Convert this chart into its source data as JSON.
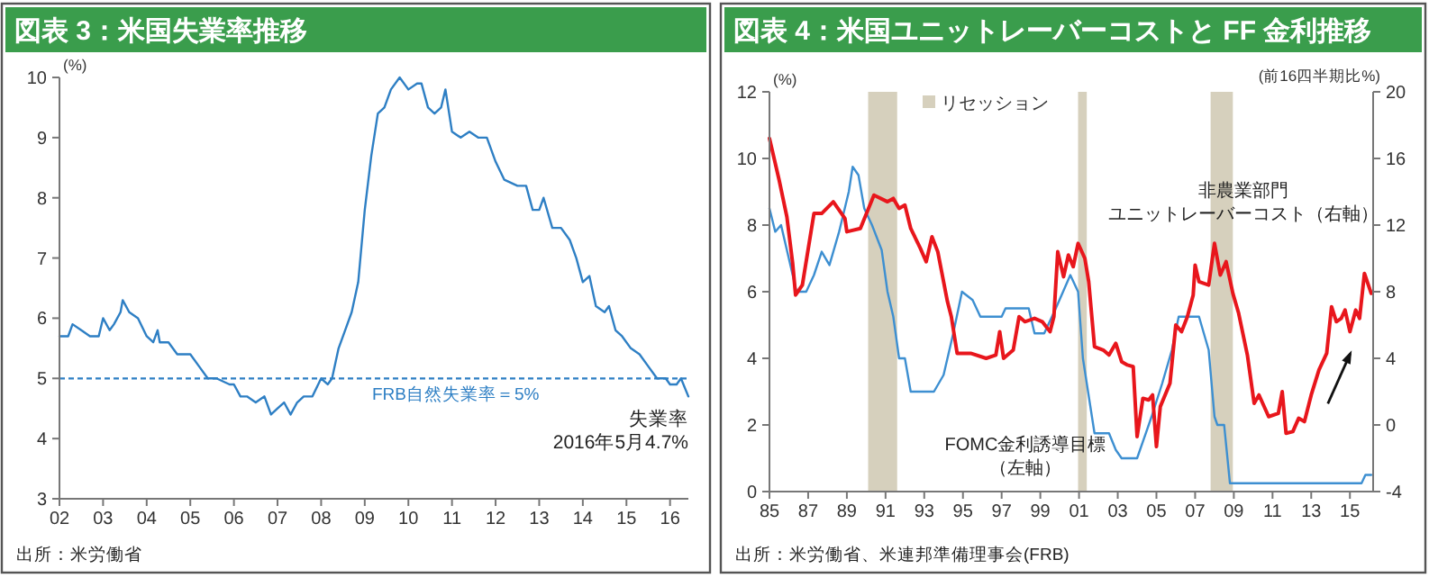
{
  "chart_data": [
    {
      "type": "line",
      "title": "図表 3：米国失業率推移",
      "ylabel": "(%)",
      "xlim": [
        2002,
        2016.42
      ],
      "xticks": [
        {
          "value": 2002,
          "label": "02"
        },
        {
          "value": 2003,
          "label": "03"
        },
        {
          "value": 2004,
          "label": "04"
        },
        {
          "value": 2005,
          "label": "05"
        },
        {
          "value": 2006,
          "label": "06"
        },
        {
          "value": 2007,
          "label": "07"
        },
        {
          "value": 2008,
          "label": "08"
        },
        {
          "value": 2009,
          "label": "09"
        },
        {
          "value": 2010,
          "label": "10"
        },
        {
          "value": 2011,
          "label": "11"
        },
        {
          "value": 2012,
          "label": "12"
        },
        {
          "value": 2013,
          "label": "13"
        },
        {
          "value": 2014,
          "label": "14"
        },
        {
          "value": 2015,
          "label": "15"
        },
        {
          "value": 2016,
          "label": "16"
        }
      ],
      "ylim": [
        3,
        10
      ],
      "yticks": [
        3,
        4,
        5,
        6,
        7,
        8,
        9,
        10
      ],
      "x": [
        2002.0,
        2002.2,
        2002.3,
        2002.5,
        2002.7,
        2002.9,
        2003.0,
        2003.15,
        2003.25,
        2003.4,
        2003.45,
        2003.6,
        2003.8,
        2004.0,
        2004.15,
        2004.25,
        2004.3,
        2004.5,
        2004.7,
        2004.9,
        2005.0,
        2005.2,
        2005.4,
        2005.6,
        2005.9,
        2006.0,
        2006.15,
        2006.3,
        2006.5,
        2006.7,
        2006.85,
        2007.0,
        2007.15,
        2007.3,
        2007.45,
        2007.6,
        2007.8,
        2008.0,
        2008.15,
        2008.25,
        2008.4,
        2008.55,
        2008.7,
        2008.85,
        2009.0,
        2009.15,
        2009.3,
        2009.45,
        2009.6,
        2009.8,
        2010.0,
        2010.2,
        2010.3,
        2010.45,
        2010.6,
        2010.75,
        2010.85,
        2011.0,
        2011.2,
        2011.4,
        2011.6,
        2011.8,
        2012.0,
        2012.2,
        2012.5,
        2012.7,
        2012.85,
        2013.0,
        2013.1,
        2013.3,
        2013.5,
        2013.7,
        2013.85,
        2014.0,
        2014.15,
        2014.3,
        2014.5,
        2014.6,
        2014.75,
        2014.9,
        2015.1,
        2015.3,
        2015.5,
        2015.7,
        2015.9,
        2016.0,
        2016.15,
        2016.25,
        2016.42
      ],
      "series": [
        {
          "color": "#2e7fc4",
          "values": [
            5.7,
            5.7,
            5.9,
            5.8,
            5.7,
            5.7,
            6.0,
            5.8,
            5.9,
            6.1,
            6.3,
            6.1,
            6.0,
            5.7,
            5.6,
            5.8,
            5.6,
            5.6,
            5.4,
            5.4,
            5.4,
            5.2,
            5.0,
            5.0,
            4.9,
            4.9,
            4.7,
            4.7,
            4.6,
            4.7,
            4.4,
            4.5,
            4.6,
            4.4,
            4.6,
            4.7,
            4.7,
            5.0,
            4.9,
            5.0,
            5.5,
            5.8,
            6.1,
            6.6,
            7.8,
            8.7,
            9.4,
            9.5,
            9.8,
            10.0,
            9.8,
            9.9,
            9.9,
            9.5,
            9.4,
            9.5,
            9.8,
            9.1,
            9.0,
            9.1,
            9.0,
            9.0,
            8.6,
            8.3,
            8.2,
            8.2,
            7.8,
            7.8,
            8.0,
            7.5,
            7.5,
            7.3,
            7.0,
            6.6,
            6.7,
            6.2,
            6.1,
            6.2,
            5.8,
            5.7,
            5.5,
            5.4,
            5.2,
            5.0,
            5.0,
            4.9,
            4.9,
            5.0,
            4.7
          ]
        }
      ],
      "ref_lines": [
        {
          "axis": "y",
          "value": 5,
          "label": "FRB自然失業率＝5%",
          "color": "#2e7fc4",
          "line_style": "dashed"
        }
      ],
      "annotations": [
        {
          "text": "失業率\n2016年5月4.7%",
          "x": 2016.42,
          "y": 4.7
        },
        "出所：米労働省"
      ]
    },
    {
      "type": "line",
      "title": "図表 4：米国ユニットレーバーコストと FF 金利推移",
      "ylabel": "(%)",
      "y2label": "(前16四半期比%)",
      "xlim": [
        1985,
        2016.2
      ],
      "xticks": [
        {
          "value": 1985,
          "label": "85"
        },
        {
          "value": 1987,
          "label": "87"
        },
        {
          "value": 1989,
          "label": "89"
        },
        {
          "value": 1991,
          "label": "91"
        },
        {
          "value": 1993,
          "label": "93"
        },
        {
          "value": 1995,
          "label": "95"
        },
        {
          "value": 1997,
          "label": "97"
        },
        {
          "value": 1999,
          "label": "99"
        },
        {
          "value": 2001,
          "label": "01"
        },
        {
          "value": 2003,
          "label": "03"
        },
        {
          "value": 2005,
          "label": "05"
        },
        {
          "value": 2007,
          "label": "07"
        },
        {
          "value": 2009,
          "label": "09"
        },
        {
          "value": 2011,
          "label": "11"
        },
        {
          "value": 2013,
          "label": "13"
        },
        {
          "value": 2015,
          "label": "15"
        }
      ],
      "ylim": [
        0,
        12
      ],
      "yticks": [
        0,
        2,
        4,
        6,
        8,
        10,
        12
      ],
      "y2lim": [
        -4,
        20
      ],
      "y2ticks": [
        -4,
        0,
        4,
        8,
        12,
        16,
        20
      ],
      "bands": [
        {
          "axis": "x",
          "from": 1990.1,
          "to": 1991.6,
          "label": "リセッション",
          "color": "#d6d0bd"
        },
        {
          "axis": "x",
          "from": 2000.95,
          "to": 2001.4,
          "color": "#d6d0bd"
        },
        {
          "axis": "x",
          "from": 2007.8,
          "to": 2008.95,
          "color": "#d6d0bd"
        }
      ],
      "legend": "top left",
      "series": [
        {
          "color": "#3d8fd1",
          "x": [
            1985.0,
            1985.3,
            1985.6,
            1986.0,
            1986.4,
            1986.9,
            1987.3,
            1987.7,
            1988.1,
            1988.6,
            1989.1,
            1989.3,
            1989.6,
            1989.9,
            1990.3,
            1990.8,
            1991.1,
            1991.4,
            1991.7,
            1992.0,
            1992.3,
            1993.5,
            1994.0,
            1994.5,
            1994.95,
            1995.5,
            1995.9,
            1997.0,
            1997.2,
            1998.4,
            1998.7,
            1999.2,
            1999.8,
            2000.55,
            2000.95,
            2001.2,
            2001.8,
            2002.55,
            2002.9,
            2003.2,
            2004.0,
            2004.75,
            2005.3,
            2005.8,
            2006.15,
            2007.2,
            2007.7,
            2008.0,
            2008.15,
            2008.5,
            2008.8,
            2015.6,
            2015.8,
            2016.1
          ],
          "values": [
            8.5,
            7.8,
            8.0,
            7.0,
            6.0,
            6.0,
            6.5,
            7.2,
            6.8,
            7.8,
            9.0,
            9.75,
            9.5,
            8.5,
            8.0,
            7.25,
            6.0,
            5.25,
            4.0,
            4.0,
            3.0,
            3.0,
            3.5,
            4.75,
            6.0,
            5.75,
            5.25,
            5.25,
            5.5,
            5.5,
            4.75,
            4.75,
            5.5,
            6.5,
            6.0,
            4.0,
            1.75,
            1.75,
            1.25,
            1.0,
            1.0,
            2.25,
            3.25,
            4.25,
            5.25,
            5.25,
            4.25,
            2.25,
            2.0,
            2.0,
            0.25,
            0.25,
            0.5,
            0.5
          ]
        },
        {
          "color": "#e8161c",
          "axis": "y2",
          "x": [
            1985.0,
            1985.5,
            1985.9,
            1986.2,
            1986.35,
            1986.7,
            1987.3,
            1987.7,
            1988.3,
            1988.9,
            1989.0,
            1989.7,
            1990.4,
            1991.1,
            1991.4,
            1991.7,
            1992.0,
            1992.3,
            1992.8,
            1993.1,
            1993.4,
            1993.7,
            1994.2,
            1994.4,
            1994.7,
            1995.4,
            1996.2,
            1996.7,
            1996.9,
            1997.1,
            1997.6,
            1997.9,
            1998.2,
            1998.7,
            1999.1,
            1999.5,
            1999.7,
            1999.9,
            2000.2,
            2000.45,
            2000.7,
            2000.95,
            2001.3,
            2001.5,
            2001.8,
            2002.25,
            2002.55,
            2002.9,
            2003.2,
            2003.5,
            2003.8,
            2004.0,
            2004.3,
            2004.6,
            2004.8,
            2005.0,
            2005.2,
            2005.7,
            2006.0,
            2006.3,
            2006.6,
            2006.9,
            2007.0,
            2007.2,
            2007.7,
            2008.0,
            2008.3,
            2008.6,
            2008.95,
            2009.25,
            2009.7,
            2010.05,
            2010.3,
            2010.8,
            2011.3,
            2011.5,
            2011.7,
            2012.05,
            2012.35,
            2012.65,
            2013.0,
            2013.4,
            2013.8,
            2014.05,
            2014.3,
            2014.55,
            2014.75,
            2015.0,
            2015.3,
            2015.5,
            2015.75,
            2016.1
          ],
          "values": [
            17.2,
            14.7,
            12.5,
            9.7,
            7.8,
            8.4,
            12.7,
            12.7,
            13.4,
            12.4,
            11.6,
            11.8,
            13.8,
            13.4,
            13.6,
            13.0,
            13.2,
            11.8,
            10.6,
            9.8,
            11.3,
            10.4,
            7.4,
            6.5,
            4.3,
            4.3,
            4.0,
            4.2,
            5.6,
            4.0,
            4.5,
            6.5,
            6.2,
            6.4,
            6.2,
            5.6,
            6.5,
            10.4,
            8.9,
            10.2,
            9.5,
            10.9,
            10.0,
            8.6,
            4.7,
            4.5,
            4.2,
            4.9,
            3.8,
            3.6,
            3.5,
            -0.7,
            1.6,
            1.5,
            1.8,
            -1.3,
            1.1,
            2.5,
            6.0,
            5.6,
            6.5,
            7.8,
            9.6,
            8.6,
            8.4,
            10.9,
            9.0,
            9.8,
            7.9,
            6.7,
            4.2,
            1.3,
            1.8,
            0.5,
            0.7,
            2.0,
            -0.5,
            -0.4,
            0.4,
            0.2,
            1.8,
            3.3,
            4.3,
            7.1,
            6.2,
            6.4,
            6.9,
            5.6,
            6.9,
            6.4,
            9.1,
            7.9
          ]
        }
      ],
      "annotations": [
        "非農業部門ユニットレーバーコスト（右軸）",
        "FOMC金利誘導目標（左軸）",
        "出所：米労働省、米連邦準備理事会(FRB)"
      ]
    }
  ]
}
